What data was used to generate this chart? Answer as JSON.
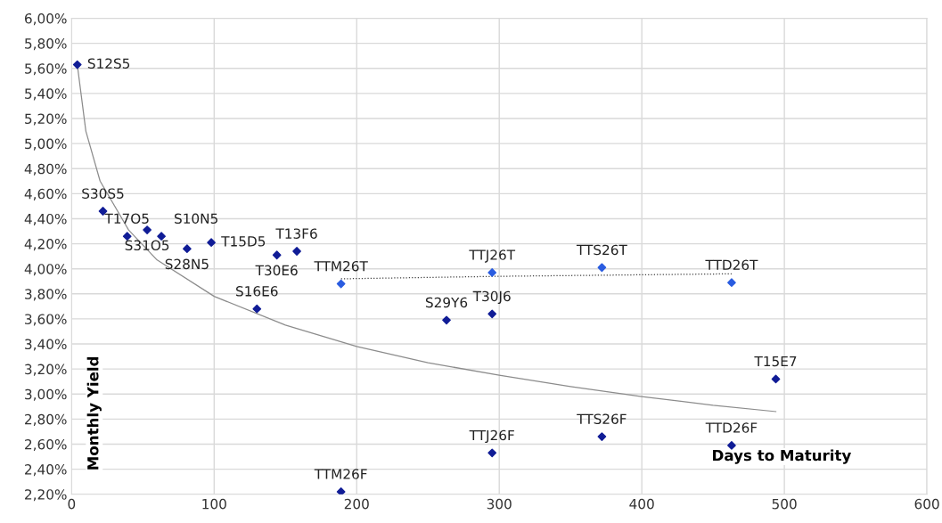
{
  "chart_data": {
    "type": "scatter",
    "xlabel": "Days to Maturity",
    "ylabel": "Monthly Yield",
    "xlim": [
      0,
      600
    ],
    "xticks": [
      0,
      100,
      200,
      300,
      400,
      500,
      600
    ],
    "ylim": [
      2.2,
      6.0
    ],
    "yticks": [
      {
        "value": 2.2,
        "label": "2,20%"
      },
      {
        "value": 2.4,
        "label": "2,40%"
      },
      {
        "value": 2.6,
        "label": "2,60%"
      },
      {
        "value": 2.8,
        "label": "2,80%"
      },
      {
        "value": 3.0,
        "label": "3,00%"
      },
      {
        "value": 3.2,
        "label": "3,20%"
      },
      {
        "value": 3.4,
        "label": "3,40%"
      },
      {
        "value": 3.6,
        "label": "3,60%"
      },
      {
        "value": 3.8,
        "label": "3,80%"
      },
      {
        "value": 4.0,
        "label": "4,00%"
      },
      {
        "value": 4.2,
        "label": "4,20%"
      },
      {
        "value": 4.4,
        "label": "4,40%"
      },
      {
        "value": 4.6,
        "label": "4,60%"
      },
      {
        "value": 4.8,
        "label": "4,80%"
      },
      {
        "value": 5.0,
        "label": "5,00%"
      },
      {
        "value": 5.2,
        "label": "5,20%"
      },
      {
        "value": 5.4,
        "label": "5,40%"
      },
      {
        "value": 5.6,
        "label": "5,60%"
      },
      {
        "value": 5.8,
        "label": "5,80%"
      },
      {
        "value": 6.0,
        "label": "6,00%"
      }
    ],
    "grid": true,
    "legend": false,
    "marker": "diamond",
    "series": [
      {
        "color": "#101c96",
        "x": [
          4,
          22,
          39,
          53,
          63,
          81,
          98,
          130,
          144,
          158,
          189,
          263,
          295,
          295,
          372,
          463,
          494
        ],
        "values": [
          5.63,
          4.46,
          4.26,
          4.31,
          4.26,
          4.16,
          4.21,
          3.68,
          4.11,
          4.14,
          2.22,
          3.59,
          3.64,
          2.53,
          2.66,
          2.59,
          3.12
        ]
      },
      {
        "color": "#2a5ce0",
        "x": [
          189,
          295,
          372,
          463
        ],
        "values": [
          3.88,
          3.97,
          4.01,
          3.89
        ]
      },
      {
        "type": "line",
        "color": "#8c8c8c",
        "line_style": "solid",
        "marker": "none",
        "x": [
          4,
          10,
          20,
          40,
          60,
          100,
          150,
          200,
          250,
          300,
          350,
          400,
          450,
          494
        ],
        "values": [
          5.63,
          5.1,
          4.7,
          4.31,
          4.07,
          3.78,
          3.55,
          3.38,
          3.25,
          3.15,
          3.06,
          2.98,
          2.91,
          2.86
        ]
      },
      {
        "type": "line",
        "color": "#404040",
        "line_style": "dotted",
        "marker": "none",
        "x": [
          189,
          300,
          463
        ],
        "values": [
          3.92,
          3.94,
          3.96
        ]
      }
    ],
    "annotations": [
      {
        "text": "S12S5",
        "x": 4,
        "y": 5.63
      },
      {
        "text": "S30S5",
        "x": 22,
        "y": 4.46
      },
      {
        "text": "T17O5",
        "x": 39,
        "y": 4.26
      },
      {
        "text": "S31O5",
        "x": 53,
        "y": 4.31
      },
      {
        "text": "S10N5",
        "x": 63,
        "y": 4.26
      },
      {
        "text": "S28N5",
        "x": 81,
        "y": 4.16
      },
      {
        "text": "T15D5",
        "x": 98,
        "y": 4.21
      },
      {
        "text": "S16E6",
        "x": 130,
        "y": 3.68
      },
      {
        "text": "T30E6",
        "x": 144,
        "y": 4.11
      },
      {
        "text": "T13F6",
        "x": 158,
        "y": 4.14
      },
      {
        "text": "TTM26F",
        "x": 189,
        "y": 2.22
      },
      {
        "text": "S29Y6",
        "x": 263,
        "y": 3.59
      },
      {
        "text": "T30J6",
        "x": 295,
        "y": 3.64
      },
      {
        "text": "TTJ26F",
        "x": 295,
        "y": 2.53
      },
      {
        "text": "TTS26F",
        "x": 372,
        "y": 2.66
      },
      {
        "text": "TTD26F",
        "x": 463,
        "y": 2.59
      },
      {
        "text": "T15E7",
        "x": 494,
        "y": 3.12
      },
      {
        "text": "TTM26T",
        "x": 189,
        "y": 3.88
      },
      {
        "text": "TTJ26T",
        "x": 295,
        "y": 3.97
      },
      {
        "text": "TTS26T",
        "x": 372,
        "y": 4.01
      },
      {
        "text": "TTD26T",
        "x": 463,
        "y": 3.89
      }
    ]
  }
}
